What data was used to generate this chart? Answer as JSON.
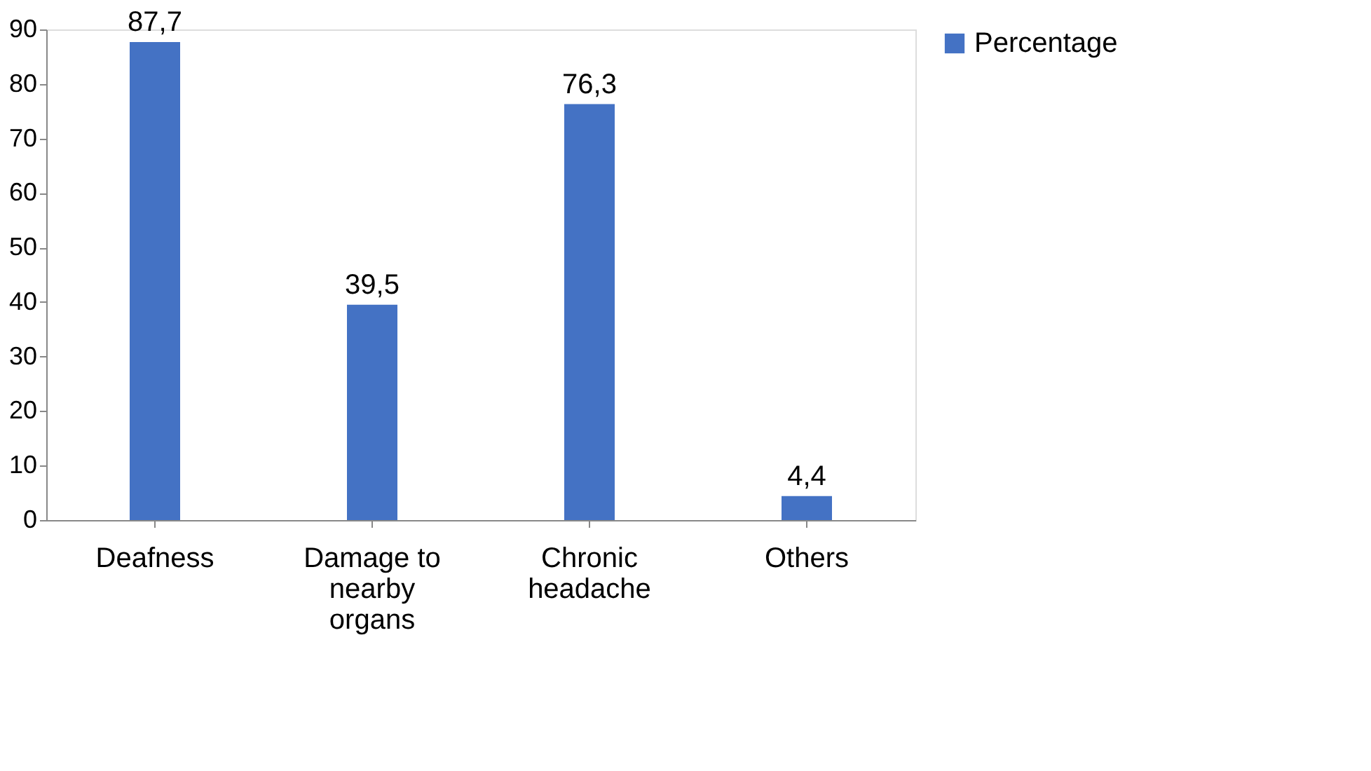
{
  "chart_data": {
    "type": "bar",
    "categories": [
      "Deafness",
      "Damage to nearby organs",
      "Chronic headache",
      "Others"
    ],
    "series": [
      {
        "name": "Percentage",
        "color": "#4472c4",
        "values": [
          87.7,
          39.5,
          76.3,
          4.4
        ],
        "value_labels": [
          "87,7",
          "39,5",
          "76,3",
          "4,4"
        ]
      }
    ],
    "ylim": [
      0,
      90
    ],
    "yticks": [
      0,
      10,
      20,
      30,
      40,
      50,
      60,
      70,
      80,
      90
    ],
    "grid": false,
    "legend": "right"
  }
}
